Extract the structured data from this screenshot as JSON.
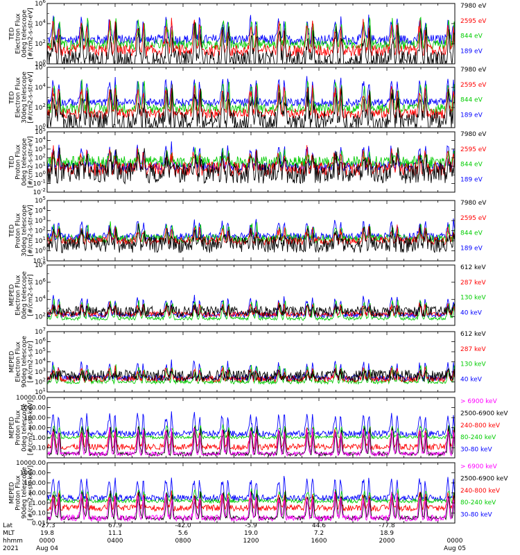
{
  "figure": {
    "x_axis": {
      "row_labels": [
        "Lat",
        "MLT",
        "hhmm",
        "2021"
      ],
      "ticks": [
        {
          "hour": 0,
          "lat": "-27.3",
          "mlt": "19.8",
          "hhmm": "0000",
          "date": "Aug 04"
        },
        {
          "hour": 4,
          "lat": "67.9",
          "mlt": "11.1",
          "hhmm": "0400",
          "date": ""
        },
        {
          "hour": 8,
          "lat": "-42.0",
          "mlt": "5.6",
          "hhmm": "0800",
          "date": ""
        },
        {
          "hour": 12,
          "lat": "-5.9",
          "mlt": "19.0",
          "hhmm": "1200",
          "date": ""
        },
        {
          "hour": 16,
          "lat": "44.6",
          "mlt": "7.2",
          "hhmm": "1600",
          "date": ""
        },
        {
          "hour": 20,
          "lat": "-77.8",
          "mlt": "18.9",
          "hhmm": "2000",
          "date": ""
        },
        {
          "hour": 24,
          "lat": "",
          "mlt": "",
          "hhmm": "0000",
          "date": "Aug 05"
        }
      ]
    }
  },
  "chart_data": [
    {
      "type": "line",
      "ylabel_lines": [
        "TED",
        "Electron Flux",
        "0deg telescope",
        "[#/cm2-s-str-eV]"
      ],
      "y_scale": "log",
      "ylim_exp": [
        0,
        6
      ],
      "y_ticks": [
        {
          "exp": 0,
          "label": "10",
          "sup": "0"
        },
        {
          "exp": 2,
          "label": "10",
          "sup": "2"
        },
        {
          "exp": 4,
          "label": "10",
          "sup": "4"
        },
        {
          "exp": 6,
          "label": "10",
          "sup": "6"
        }
      ],
      "series": [
        {
          "name": "7980 eV",
          "color": "#000000",
          "base_exp": 0.3,
          "noise_exp": 1.0,
          "peak_exp": 3.5,
          "floor_exp": 0
        },
        {
          "name": "2595 eV",
          "color": "#ff0000",
          "base_exp": 1.3,
          "noise_exp": 0.6,
          "peak_exp": 4.2,
          "floor_exp": 0
        },
        {
          "name": "844 eV",
          "color": "#00cc00",
          "base_exp": 1.9,
          "noise_exp": 0.5,
          "peak_exp": 4.6,
          "floor_exp": 0
        },
        {
          "name": "189 eV",
          "color": "#0000ff",
          "base_exp": 2.4,
          "noise_exp": 0.5,
          "peak_exp": 4.6,
          "floor_exp": 0
        }
      ],
      "legend_colors": [
        "#000000",
        "#ff0000",
        "#00cc00",
        "#0000ff"
      ]
    },
    {
      "type": "line",
      "ylabel_lines": [
        "TED",
        "Electron Flux",
        "30deg telescope",
        "[#/cm2-s-str-eV]"
      ],
      "y_scale": "log",
      "ylim_exp": [
        0,
        6
      ],
      "y_ticks": [
        {
          "exp": 0,
          "label": "10",
          "sup": "0"
        },
        {
          "exp": 2,
          "label": "10",
          "sup": "2"
        },
        {
          "exp": 4,
          "label": "10",
          "sup": "4"
        },
        {
          "exp": 6,
          "label": "10",
          "sup": "6"
        }
      ],
      "series": [
        {
          "name": "7980 eV",
          "color": "#000000",
          "base_exp": 0.6,
          "noise_exp": 1.0,
          "peak_exp": 3.6,
          "floor_exp": 0
        },
        {
          "name": "2595 eV",
          "color": "#ff0000",
          "base_exp": 1.4,
          "noise_exp": 0.5,
          "peak_exp": 4.2,
          "floor_exp": 0
        },
        {
          "name": "844 eV",
          "color": "#00cc00",
          "base_exp": 1.9,
          "noise_exp": 0.5,
          "peak_exp": 4.6,
          "floor_exp": 0
        },
        {
          "name": "189 eV",
          "color": "#0000ff",
          "base_exp": 2.5,
          "noise_exp": 0.4,
          "peak_exp": 4.9,
          "floor_exp": 0
        }
      ],
      "legend_colors": [
        "#000000",
        "#ff0000",
        "#00cc00",
        "#0000ff"
      ]
    },
    {
      "type": "line",
      "ylabel_lines": [
        "TED",
        "Proton Flux",
        "0deg telescope",
        "[#/cm2-s-str-eV]"
      ],
      "y_scale": "log",
      "ylim_exp": [
        -2,
        5
      ],
      "y_ticks": [
        {
          "exp": -2,
          "label": "10",
          "sup": "-2"
        },
        {
          "exp": -1,
          "label": "10",
          "sup": "-1"
        },
        {
          "exp": 0,
          "label": "10",
          "sup": "0"
        },
        {
          "exp": 1,
          "label": "10",
          "sup": "1"
        },
        {
          "exp": 2,
          "label": "10",
          "sup": "2"
        },
        {
          "exp": 3,
          "label": "10",
          "sup": "3"
        },
        {
          "exp": 4,
          "label": "10",
          "sup": "4"
        },
        {
          "exp": 5,
          "label": "10",
          "sup": "5"
        }
      ],
      "series": [
        {
          "name": "7980 eV",
          "color": "#000000",
          "base_exp": 0.2,
          "noise_exp": 1.2,
          "peak_exp": 2.5,
          "floor_exp": -2
        },
        {
          "name": "2595 eV",
          "color": "#ff0000",
          "base_exp": 0.7,
          "noise_exp": 0.8,
          "peak_exp": 2.8,
          "floor_exp": -2
        },
        {
          "name": "844 eV",
          "color": "#00cc00",
          "base_exp": 1.5,
          "noise_exp": 0.7,
          "peak_exp": 2.6,
          "floor_exp": -2
        },
        {
          "name": "189 eV",
          "color": "#0000ff",
          "base_exp": 1.0,
          "noise_exp": 0.5,
          "peak_exp": 3.5,
          "floor_exp": -2
        }
      ],
      "legend_colors": [
        "#000000",
        "#ff0000",
        "#00cc00",
        "#0000ff"
      ]
    },
    {
      "type": "line",
      "ylabel_lines": [
        "TED",
        "Proton Flux",
        "30deg telescope",
        "[#/cm2-s-str-eV]"
      ],
      "y_scale": "log",
      "ylim_exp": [
        -1,
        5
      ],
      "y_ticks": [
        {
          "exp": -1,
          "label": "10",
          "sup": "-1"
        },
        {
          "exp": 0,
          "label": "10",
          "sup": "0"
        },
        {
          "exp": 1,
          "label": "10",
          "sup": "1"
        },
        {
          "exp": 2,
          "label": "10",
          "sup": "2"
        },
        {
          "exp": 3,
          "label": "10",
          "sup": "3"
        },
        {
          "exp": 4,
          "label": "10",
          "sup": "4"
        },
        {
          "exp": 5,
          "label": "10",
          "sup": "5"
        }
      ],
      "series": [
        {
          "name": "7980 eV",
          "color": "#000000",
          "base_exp": 0.6,
          "noise_exp": 0.8,
          "peak_exp": 2.0,
          "floor_exp": -1
        },
        {
          "name": "2595 eV",
          "color": "#ff0000",
          "base_exp": 1.0,
          "noise_exp": 0.4,
          "peak_exp": 2.3,
          "floor_exp": -1
        },
        {
          "name": "844 eV",
          "color": "#00cc00",
          "base_exp": 1.2,
          "noise_exp": 0.4,
          "peak_exp": 2.6,
          "floor_exp": -1
        },
        {
          "name": "189 eV",
          "color": "#0000ff",
          "base_exp": 1.4,
          "noise_exp": 0.4,
          "peak_exp": 3.0,
          "floor_exp": -1
        }
      ],
      "legend_colors": [
        "#000000",
        "#ff0000",
        "#00cc00",
        "#0000ff"
      ]
    },
    {
      "type": "line",
      "ylabel_lines": [
        "MEPED",
        "Electron Flux",
        "0deg telescope",
        "[#/cm2-s-str]"
      ],
      "y_scale": "log",
      "ylim_exp": [
        1,
        8
      ],
      "y_ticks": [
        {
          "exp": 2,
          "label": "10",
          "sup": "2"
        },
        {
          "exp": 4,
          "label": "10",
          "sup": "4"
        },
        {
          "exp": 6,
          "label": "10",
          "sup": "6"
        },
        {
          "exp": 8,
          "label": "10",
          "sup": "8"
        }
      ],
      "series": [
        {
          "name": "612 keV",
          "color": "#000000",
          "base_exp": 2.6,
          "noise_exp": 0.6,
          "peak_exp": 3.0,
          "floor_exp": 1
        },
        {
          "name": "287 keV",
          "color": "#ff0000",
          "base_exp": 2.3,
          "noise_exp": 0.3,
          "peak_exp": 3.5,
          "floor_exp": 1
        },
        {
          "name": "130 keV",
          "color": "#00cc00",
          "base_exp": 1.8,
          "noise_exp": 0.2,
          "peak_exp": 4.0,
          "floor_exp": 1
        },
        {
          "name": "40 keV",
          "color": "#0000ff",
          "base_exp": 2.2,
          "noise_exp": 0.3,
          "peak_exp": 4.5,
          "floor_exp": 1
        }
      ],
      "legend_colors": [
        "#000000",
        "#ff0000",
        "#00cc00",
        "#0000ff"
      ]
    },
    {
      "type": "line",
      "ylabel_lines": [
        "MEPED",
        "Electron Flux",
        "90deg telescope",
        "[#/cm2-s-str]"
      ],
      "y_scale": "log",
      "ylim_exp": [
        1,
        7
      ],
      "y_ticks": [
        {
          "exp": 1,
          "label": "10",
          "sup": "1"
        },
        {
          "exp": 2,
          "label": "10",
          "sup": "2"
        },
        {
          "exp": 3,
          "label": "10",
          "sup": "3"
        },
        {
          "exp": 4,
          "label": "10",
          "sup": "4"
        },
        {
          "exp": 5,
          "label": "10",
          "sup": "5"
        },
        {
          "exp": 6,
          "label": "10",
          "sup": "6"
        },
        {
          "exp": 7,
          "label": "10",
          "sup": "7"
        }
      ],
      "series": [
        {
          "name": "612 keV",
          "color": "#000000",
          "base_exp": 2.6,
          "noise_exp": 0.6,
          "peak_exp": 2.8,
          "floor_exp": 1
        },
        {
          "name": "287 keV",
          "color": "#ff0000",
          "base_exp": 2.3,
          "noise_exp": 0.3,
          "peak_exp": 3.4,
          "floor_exp": 1
        },
        {
          "name": "130 keV",
          "color": "#00cc00",
          "base_exp": 2.0,
          "noise_exp": 0.2,
          "peak_exp": 3.7,
          "floor_exp": 1
        },
        {
          "name": "40 keV",
          "color": "#0000ff",
          "base_exp": 2.4,
          "noise_exp": 0.3,
          "peak_exp": 4.0,
          "floor_exp": 1
        }
      ],
      "legend_colors": [
        "#000000",
        "#ff0000",
        "#00cc00",
        "#0000ff"
      ]
    },
    {
      "type": "line",
      "ylabel_lines": [
        "MEPED",
        "Proton Flux",
        "0deg telescope",
        "[#/cm2-s-str-keV]"
      ],
      "y_scale": "log",
      "ylim_exp": [
        -2,
        4
      ],
      "y_ticks": [
        {
          "exp": -1,
          "label": "0.10"
        },
        {
          "exp": 0,
          "label": "1.00"
        },
        {
          "exp": 1,
          "label": "10.00"
        },
        {
          "exp": 2,
          "label": "100.00"
        },
        {
          "exp": 3,
          "label": "1000.00"
        },
        {
          "exp": 4,
          "label": "10000.00"
        }
      ],
      "series": [
        {
          "name": "> 6900 keV",
          "color": "#ff00ff",
          "base_exp": -1.6,
          "noise_exp": 0.2,
          "peak_exp": 1.0,
          "floor_exp": -2
        },
        {
          "name": "2500-6900 keV",
          "color": "#000000",
          "base_exp": -1.6,
          "noise_exp": 0.2,
          "peak_exp": 1.3,
          "floor_exp": -2
        },
        {
          "name": "240-800 keV",
          "color": "#ff0000",
          "base_exp": -0.9,
          "noise_exp": 0.3,
          "peak_exp": 0.9,
          "floor_exp": -2
        },
        {
          "name": "80-240 keV",
          "color": "#00cc00",
          "base_exp": 0.05,
          "noise_exp": 0.15,
          "peak_exp": 1.3,
          "floor_exp": -2
        },
        {
          "name": "30-80 keV",
          "color": "#0000ff",
          "base_exp": 0.4,
          "noise_exp": 0.3,
          "peak_exp": 2.5,
          "floor_exp": -2
        }
      ],
      "legend_colors": [
        "#ff00ff",
        "#000000",
        "#ff0000",
        "#00cc00",
        "#0000ff"
      ]
    },
    {
      "type": "line",
      "ylabel_lines": [
        "MEPED",
        "Proton Flux",
        "90deg telescope",
        "[#/cm2-s-str-keV]"
      ],
      "y_scale": "log",
      "ylim_exp": [
        -2,
        4
      ],
      "y_ticks": [
        {
          "exp": -2,
          "label": "0.01"
        },
        {
          "exp": -1,
          "label": "0.10"
        },
        {
          "exp": 0,
          "label": "1.00"
        },
        {
          "exp": 1,
          "label": "10.00"
        },
        {
          "exp": 2,
          "label": "100.00"
        },
        {
          "exp": 3,
          "label": "1000.00"
        },
        {
          "exp": 4,
          "label": "10000.00"
        }
      ],
      "series": [
        {
          "name": "> 6900 keV",
          "color": "#ff00ff",
          "base_exp": -1.5,
          "noise_exp": 0.3,
          "peak_exp": 1.0,
          "floor_exp": -2
        },
        {
          "name": "2500-6900 keV",
          "color": "#000000",
          "base_exp": -1.5,
          "noise_exp": 0.2,
          "peak_exp": 1.3,
          "floor_exp": -2
        },
        {
          "name": "240-800 keV",
          "color": "#ff0000",
          "base_exp": -0.5,
          "noise_exp": 0.3,
          "peak_exp": 1.0,
          "floor_exp": -2
        },
        {
          "name": "80-240 keV",
          "color": "#00cc00",
          "base_exp": 0.2,
          "noise_exp": 0.2,
          "peak_exp": 1.3,
          "floor_exp": -2
        },
        {
          "name": "30-80 keV",
          "color": "#0000ff",
          "base_exp": 0.5,
          "noise_exp": 0.3,
          "peak_exp": 2.6,
          "floor_exp": -2
        }
      ],
      "legend_colors": [
        "#ff00ff",
        "#000000",
        "#ff0000",
        "#00cc00",
        "#0000ff"
      ]
    }
  ]
}
